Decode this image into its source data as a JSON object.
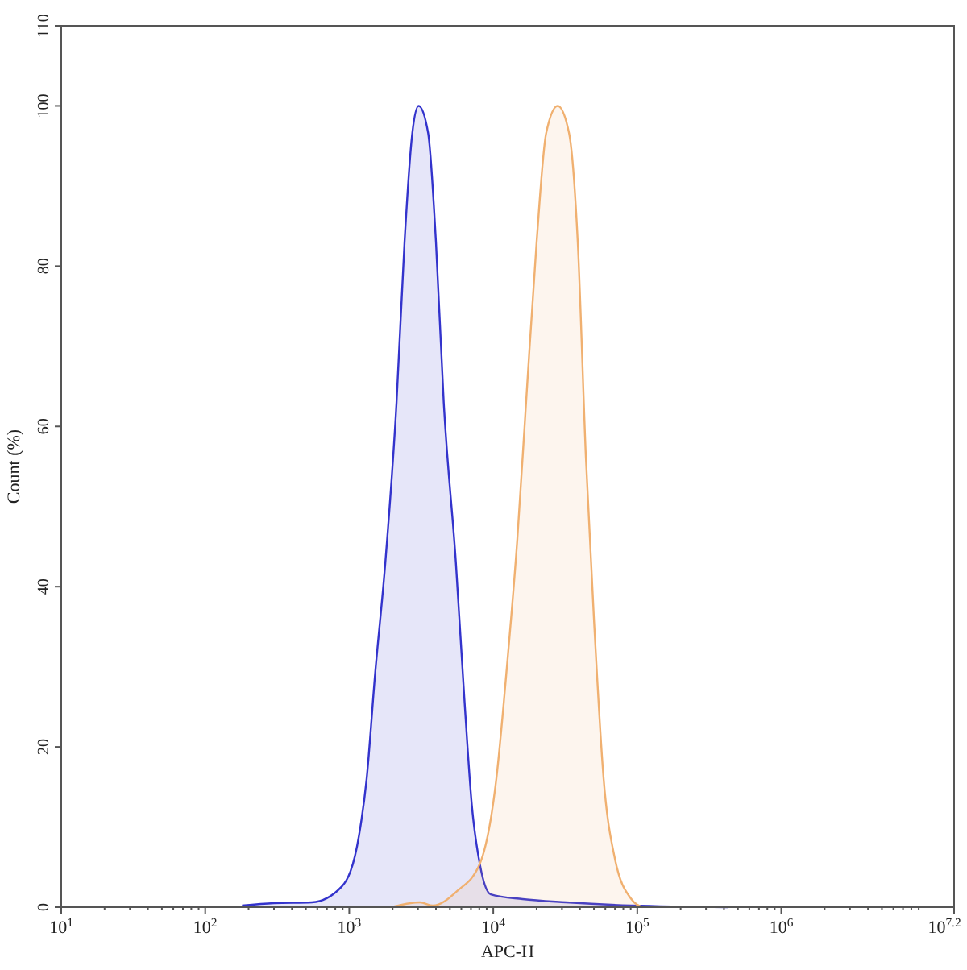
{
  "chart_data": {
    "type": "area",
    "xlabel": "APC-H",
    "ylabel": "Count (%)",
    "log": "x",
    "xlim": [
      10,
      15848931.9
    ],
    "ylim": [
      0,
      110
    ],
    "xticks": [
      {
        "value": 10,
        "label": "10$^{1}$"
      },
      {
        "value": 100,
        "label": "10$^{2}$"
      },
      {
        "value": 1000,
        "label": "10$^{3}$"
      },
      {
        "value": 10000,
        "label": "10$^{4}$"
      },
      {
        "value": 100000,
        "label": "10$^{5}$"
      },
      {
        "value": 1000000,
        "label": "10$^{6}$"
      },
      {
        "value": 15848931.9,
        "label": "10$^{7.2}$"
      }
    ],
    "yticks": [
      0,
      20,
      40,
      60,
      80,
      100,
      110
    ],
    "grid": false,
    "series": [
      {
        "color": "#3333cc",
        "x": [
          180,
          300,
          550,
          890,
          1170,
          1320,
          1510,
          1780,
          2130,
          2420,
          2740,
          3030,
          3530,
          4000,
          4530,
          5500,
          6300,
          7100,
          8100,
          9600,
          16000,
          32000,
          91000,
          430000
        ],
        "values": [
          0.2,
          0.5,
          0.6,
          2.6,
          9,
          16,
          29,
          43,
          63,
          83,
          96.6,
          100,
          96.6,
          83,
          63,
          43,
          26,
          12.7,
          5.2,
          1.6,
          1,
          0.6,
          0.2,
          0
        ]
      },
      {
        "color": "#f0b070",
        "x": [
          1950,
          3100,
          3800,
          5600,
          8100,
          10500,
          12300,
          14700,
          16900,
          20000,
          23300,
          28000,
          33600,
          38600,
          44000,
          50000,
          58400,
          70000,
          91000,
          109000
        ],
        "values": [
          0,
          0.6,
          0.2,
          2,
          5.5,
          16,
          29,
          46,
          63,
          83,
          96.6,
          100,
          96.6,
          83,
          56,
          36,
          16,
          6,
          1,
          0
        ]
      }
    ]
  }
}
